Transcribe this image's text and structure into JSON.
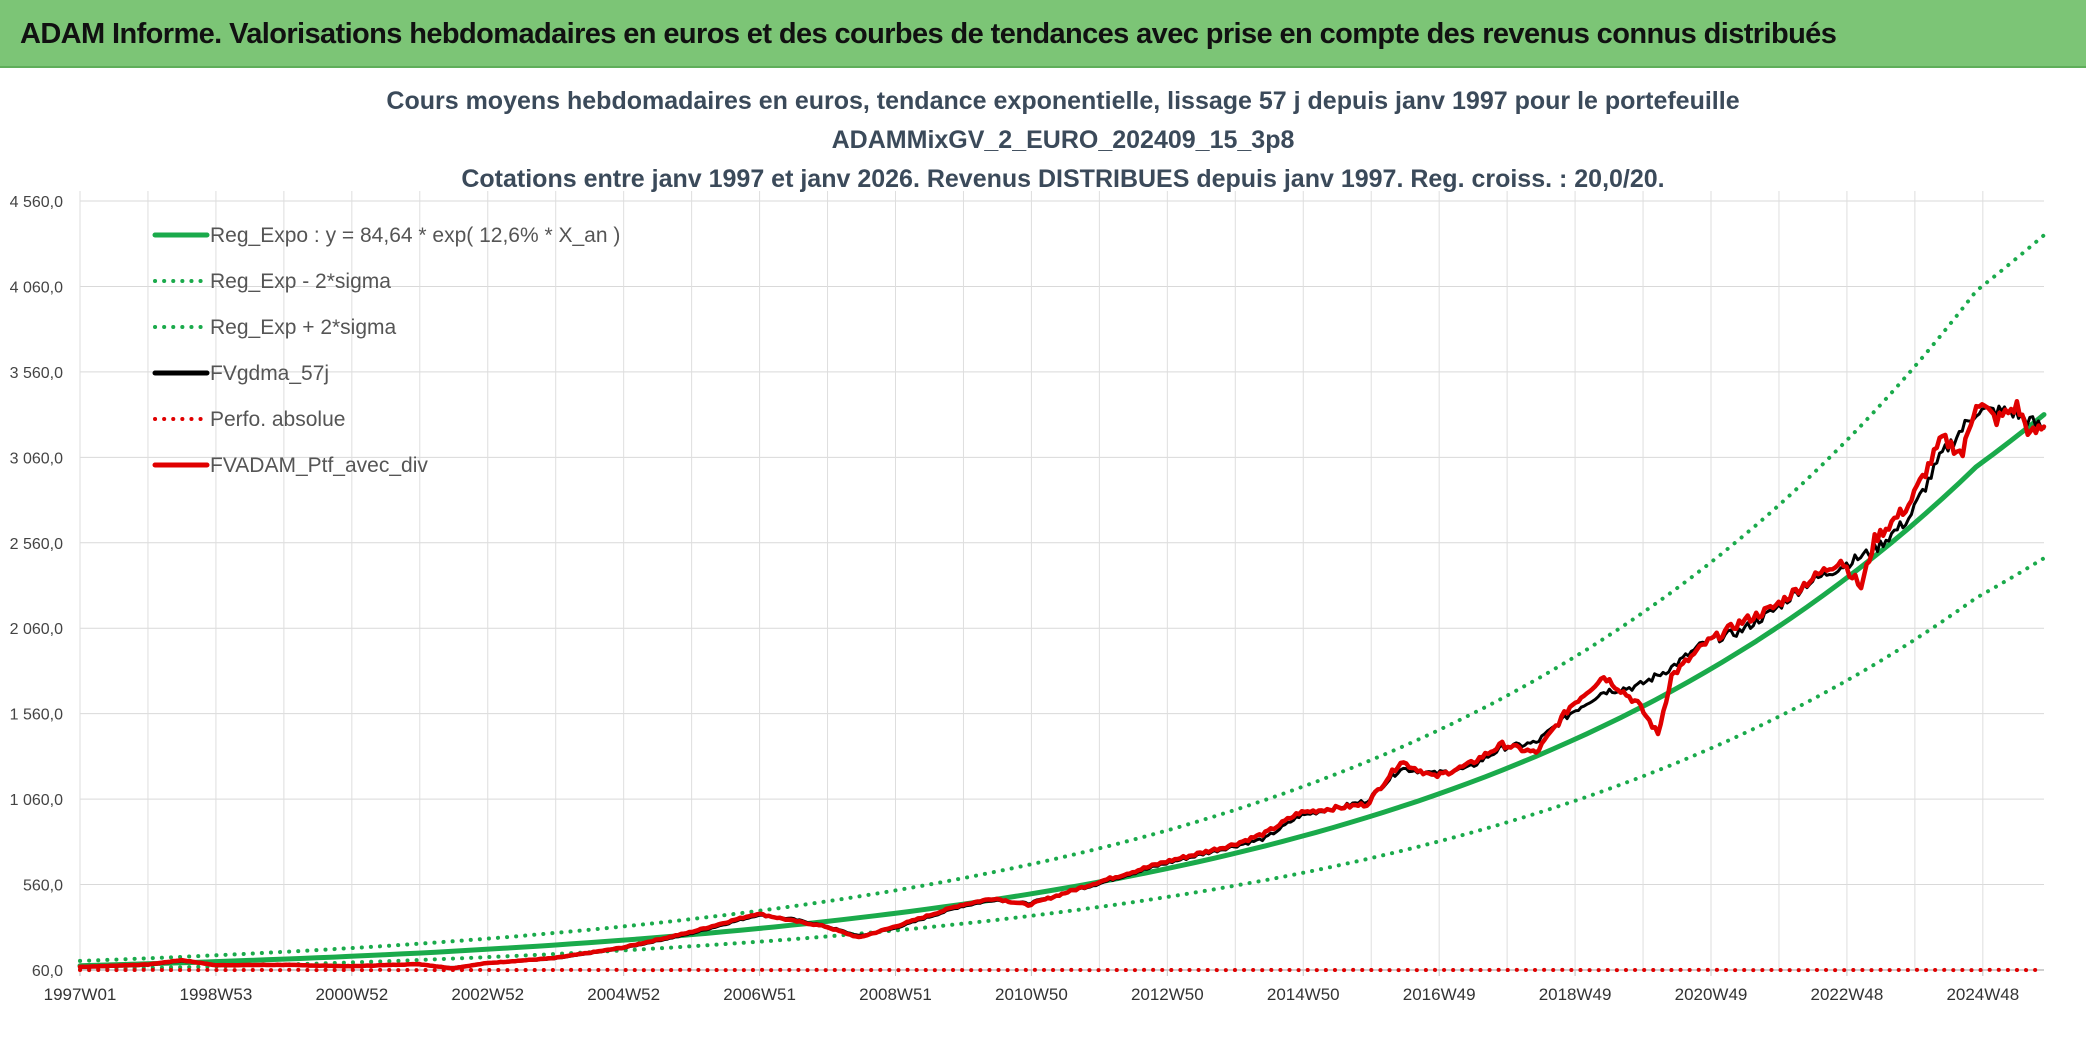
{
  "header": {
    "title": "ADAM Informe. Valorisations hebdomadaires en euros et des courbes de tendances avec prise en compte des revenus connus distribués"
  },
  "colors": {
    "header_bg": "#7cc576",
    "accent": "#f2c21b",
    "reg_expo": "#1aaa4b",
    "fvgdma": "#000000",
    "fvadam": "#e00000"
  },
  "chart_data": {
    "type": "line",
    "title_lines": [
      "Cours moyens hebdomadaires en euros, tendance exponentielle, lissage 57 j depuis janv 1997 pour le portefeuille",
      "ADAMMixGV_2_EURO_202409_15_3p8",
      "Cotations entre janv 1997 et janv 2026. Revenus DISTRIBUES depuis janv 1997. Reg. croiss. : 20,0/20."
    ],
    "xlabel": "",
    "ylabel": "",
    "x_tick_labels": [
      "1997W01",
      "1998W53",
      "2000W52",
      "2002W52",
      "2004W52",
      "2006W51",
      "2008W51",
      "2010W50",
      "2012W50",
      "2014W50",
      "2016W49",
      "2018W49",
      "2020W49",
      "2022W48",
      "2024W48"
    ],
    "x_range": [
      1997.0,
      2026.0
    ],
    "y_tick_labels": [
      "60,0",
      "560,0",
      "1 060,0",
      "1 560,0",
      "2 060,0",
      "2 560,0",
      "3 060,0",
      "3 560,0",
      "4 060,0",
      "4 560,0"
    ],
    "ylim": [
      60,
      4560
    ],
    "grid": true,
    "legend_position": "top-left",
    "series": [
      {
        "name": "Reg_Expo : y = 84,64 * exp( 12,6% *  X_an )",
        "style": "solid",
        "color": "#1aaa4b",
        "x": [
          1997,
          1999,
          2001,
          2003,
          2005,
          2007,
          2009,
          2011,
          2013,
          2015,
          2017,
          2019,
          2021,
          2023,
          2025,
          2026
        ],
        "values": [
          85,
          109,
          140,
          181,
          234,
          302,
          390,
          503,
          649,
          838,
          1082,
          1397,
          1803,
          2328,
          3005,
          3310
        ]
      },
      {
        "name": "Reg_Exp - 2*sigma",
        "style": "dotted",
        "color": "#1aaa4b",
        "x": [
          1997,
          1999,
          2001,
          2003,
          2005,
          2007,
          2009,
          2011,
          2013,
          2015,
          2017,
          2019,
          2021,
          2023,
          2025,
          2026
        ],
        "values": [
          63,
          81,
          104,
          135,
          174,
          225,
          290,
          375,
          484,
          624,
          806,
          1040,
          1343,
          1734,
          2238,
          2470
        ]
      },
      {
        "name": "Reg_Exp + 2*sigma",
        "style": "dotted",
        "color": "#1aaa4b",
        "x": [
          1997,
          1999,
          2001,
          2003,
          2005,
          2007,
          2009,
          2011,
          2013,
          2015,
          2017,
          2019,
          2021,
          2023,
          2025,
          2026
        ],
        "values": [
          113,
          146,
          188,
          243,
          314,
          405,
          523,
          675,
          871,
          1125,
          1452,
          1875,
          2420,
          3124,
          4034,
          4360
        ]
      },
      {
        "name": "FVgdma_57j",
        "style": "solid",
        "color": "#000000",
        "x": [
          1997,
          1997.5,
          1998,
          1998.5,
          1999,
          2000,
          2001,
          2002,
          2002.5,
          2003,
          2004,
          2005,
          2006,
          2007,
          2007.5,
          2008,
          2008.5,
          2009,
          2010,
          2010.5,
          2011,
          2012,
          2013,
          2014,
          2014.5,
          2015,
          2016,
          2016.5,
          2017,
          2017.5,
          2018,
          2018.5,
          2019,
          2019.5,
          2020,
          2020.5,
          2021,
          2021.5,
          2022,
          2022.5,
          2023,
          2023.5,
          2024,
          2024.5,
          2025,
          2025.5,
          2026
        ],
        "values": [
          75,
          82,
          88,
          112,
          90,
          88,
          85,
          90,
          75,
          98,
          125,
          185,
          270,
          380,
          360,
          320,
          260,
          300,
          430,
          470,
          450,
          560,
          680,
          780,
          830,
          960,
          1050,
          1240,
          1210,
          1240,
          1360,
          1390,
          1560,
          1690,
          1720,
          1830,
          1980,
          2040,
          2160,
          2320,
          2420,
          2520,
          2700,
          3080,
          3330,
          3330,
          3230
        ]
      },
      {
        "name": "Perfo. absolue",
        "style": "dotted",
        "color": "#e00000",
        "x": [
          1997,
          2026
        ],
        "values": [
          60,
          60
        ]
      },
      {
        "name": "FVADAM_Ptf_avec_div",
        "style": "solid",
        "color": "#e00000",
        "x": [
          1997,
          1997.5,
          1998,
          1998.5,
          1999,
          2000,
          2001,
          2002,
          2002.5,
          2003,
          2004,
          2005,
          2006,
          2007,
          2007.5,
          2008,
          2008.5,
          2009,
          2010,
          2010.5,
          2011,
          2012,
          2013,
          2014,
          2014.5,
          2015,
          2016,
          2016.5,
          2017,
          2017.5,
          2018,
          2018.5,
          2019,
          2019.5,
          2020,
          2020.3,
          2020.5,
          2021,
          2021.5,
          2022,
          2022.5,
          2023,
          2023.3,
          2023.5,
          2024,
          2024.5,
          2024.8,
          2025,
          2025.3,
          2025.6,
          2025.8,
          2026
        ],
        "values": [
          78,
          85,
          92,
          118,
          88,
          90,
          82,
          95,
          70,
          100,
          130,
          190,
          280,
          390,
          350,
          315,
          250,
          310,
          440,
          480,
          440,
          570,
          690,
          790,
          860,
          980,
          1030,
          1280,
          1190,
          1260,
          1380,
          1330,
          1600,
          1780,
          1620,
          1440,
          1780,
          1970,
          2090,
          2180,
          2330,
          2460,
          2300,
          2580,
          2780,
          3170,
          3080,
          3390,
          3280,
          3360,
          3190,
          3240
        ]
      }
    ]
  }
}
